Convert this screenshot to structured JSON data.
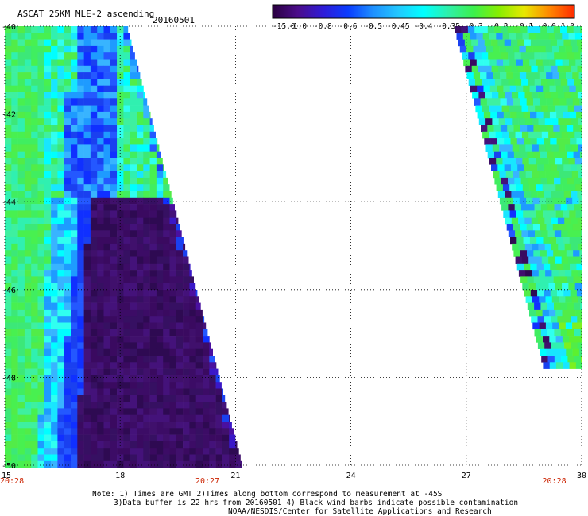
{
  "title": "ASCAT 25KM MLE-2 ascending",
  "date": "20160501",
  "colorbar": {
    "labels": [
      "-15.0",
      "-1.0",
      "-0.8",
      "-0.6",
      "-0.5",
      "-0.45",
      "-0.4",
      "-0.35",
      "-0.3",
      "-0.2",
      "-0.1",
      "0.0",
      "1.0"
    ],
    "colors": [
      "#2a0040",
      "#4b0d8a",
      "#2f1bd6",
      "#0a3cff",
      "#1e90ff",
      "#22c8ff",
      "#00ffff",
      "#2ef0a8",
      "#3cf04b",
      "#88ee00",
      "#e8e800",
      "#ff8800",
      "#ff2a00"
    ]
  },
  "axes": {
    "x_ticks": [
      "15",
      "18",
      "21",
      "24",
      "27",
      "30"
    ],
    "x_tick_values": [
      15,
      18,
      21,
      24,
      27,
      30
    ],
    "y_ticks": [
      "-40",
      "-42",
      "-44",
      "-46",
      "-48",
      "-50"
    ],
    "y_tick_values": [
      -40,
      -42,
      -44,
      -46,
      -48,
      -50
    ],
    "x_range": [
      15,
      30
    ],
    "y_range": [
      -40,
      -50
    ],
    "grid": "dotted"
  },
  "times": [
    "20:28",
    "20:27",
    "20:28"
  ],
  "time_positions_lon": [
    15,
    20.27,
    29.6
  ],
  "swaths": [
    {
      "name": "west",
      "lon_start": 15.0,
      "east_edge_top": 18.2,
      "east_edge_bottom": 21.2
    },
    {
      "name": "east",
      "east_edge": 30.0,
      "west_edge_top": 26.7,
      "west_edge_bottom": 29.7,
      "lat_end": -47.7
    }
  ],
  "notes": [
    "Note: 1) Times are GMT 2)Times along bottom correspond to measurement at -45S",
    "3)Data buffer is 22 hrs from 20160501 4) Black wind barbs indicate possible contamination",
    "NOAA/NESDIS/Center for Satellite Applications and Research"
  ],
  "colors": {
    "time_labels": "#cc2200"
  }
}
